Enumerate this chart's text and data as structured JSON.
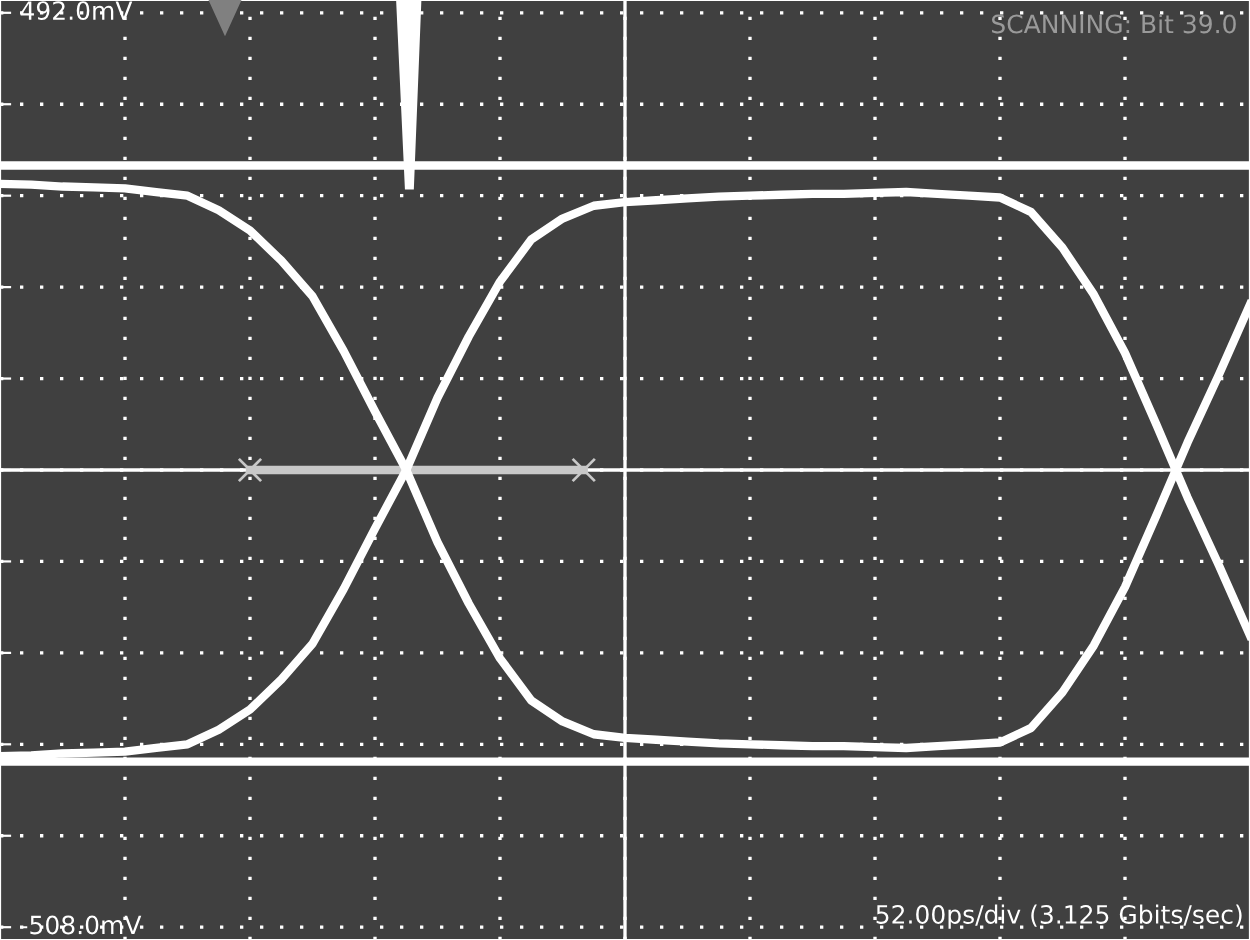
{
  "chart_data": {
    "type": "line",
    "categories": [
      null,
      null,
      null,
      null,
      null,
      null,
      null,
      null,
      null,
      null,
      null,
      null,
      null,
      null,
      null,
      null,
      null,
      null,
      null,
      null,
      null,
      null,
      null,
      null,
      null,
      null,
      null,
      null,
      null,
      null,
      null,
      null,
      null,
      null,
      null,
      null,
      null,
      null,
      null,
      null,
      null
    ],
    "ylim": [
      -522,
      506
    ],
    "yticks": [
      {
        "value": -508,
        "label": "-508.0mV"
      },
      {
        "value": -408,
        "label": null
      },
      {
        "value": -308,
        "label": null
      },
      {
        "value": -208,
        "label": null
      },
      {
        "value": -108,
        "label": null
      },
      {
        "value": -8,
        "label": null
      },
      {
        "value": 92,
        "label": null
      },
      {
        "value": 192,
        "label": null
      },
      {
        "value": 292,
        "label": null
      },
      {
        "value": 392,
        "label": null
      },
      {
        "value": 492,
        "label": "492.0mV"
      }
    ],
    "grid": true,
    "ref_lines": [
      {
        "axis": "y",
        "value": -8,
        "color": "#ffffff"
      }
    ],
    "line_style": "solid",
    "marker": "none",
    "annotations": [
      "SCANNING: Bit 39.0",
      "52.00ps/div (3.125 Gbits/sec)"
    ],
    "series": [
      {
        "color": "#ffffff",
        "values": [
          305,
          304,
          302,
          301,
          300,
          296,
          292,
          276,
          254,
          221,
          182,
          122,
          56,
          -8,
          -87,
          -154,
          -214,
          -260,
          -283,
          -297,
          -301,
          -303,
          -305,
          -307,
          -308,
          -309,
          -310,
          -310,
          -311,
          -312,
          -310,
          -308,
          -306,
          -290,
          -251,
          -200,
          -136,
          -58,
          22,
          96,
          173
        ]
      },
      {
        "color": "#ffffff",
        "values": [
          -321,
          -320,
          -318,
          -317,
          -316,
          -312,
          -308,
          -292,
          -270,
          -237,
          -198,
          -138,
          -72,
          -8,
          71,
          138,
          198,
          244,
          267,
          281,
          285,
          287,
          289,
          291,
          292,
          293,
          294,
          294,
          295,
          296,
          294,
          292,
          290,
          274,
          235,
          184,
          120,
          42,
          -38,
          -112,
          -189
        ]
      },
      {
        "color": "#ffffff",
        "values": [
          325,
          325,
          325,
          325,
          325,
          325,
          325,
          325,
          325,
          325,
          325,
          325,
          325,
          325,
          325,
          325,
          325,
          325,
          325,
          325,
          325,
          325,
          325,
          325,
          325,
          325,
          325,
          325,
          325,
          325,
          325,
          325,
          325,
          325,
          325,
          325,
          325,
          325,
          325,
          325,
          325
        ]
      },
      {
        "color": "#ffffff",
        "values": [
          -327,
          -327,
          -327,
          -327,
          -327,
          -327,
          -327,
          -327,
          -327,
          -327,
          -327,
          -327,
          -327,
          -327,
          -327,
          -327,
          -327,
          -327,
          -327,
          -327,
          -327,
          -327,
          -327,
          -327,
          -327,
          -327,
          -327,
          -327,
          -327,
          -327,
          -327,
          -327,
          -327,
          -327,
          -327,
          -327,
          -327,
          -327,
          -327,
          -327,
          -327
        ]
      }
    ]
  }
}
